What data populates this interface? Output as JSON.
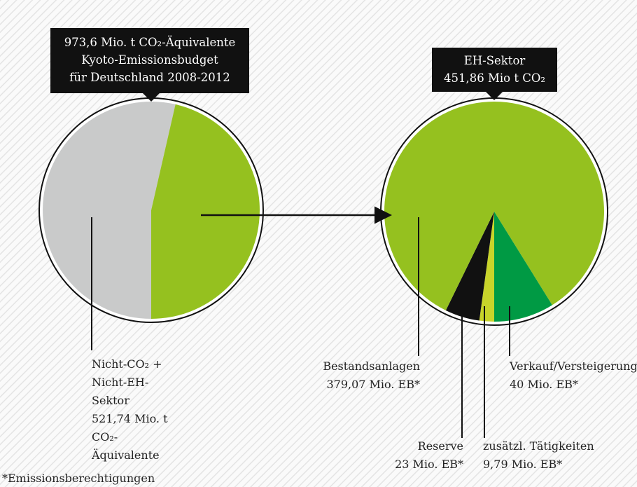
{
  "chart_data": [
    {
      "type": "pie",
      "title": [
        "973,6 Mio. t CO₂-Äquivalente",
        "Kyoto-Emissionsbudget",
        "für Deutschland 2008-2012"
      ],
      "categories": [
        "Nicht-CO₂ + Nicht-EH-Sektor",
        null
      ],
      "values": [
        521.74,
        451.86
      ],
      "value_labels": [
        "521,74 Mio. t CO₂-Äquivalente",
        null
      ],
      "colors": [
        "#c9caca",
        "#95c11f"
      ]
    },
    {
      "type": "pie",
      "title": [
        "EH-Sektor",
        "451,86 Mio t CO₂"
      ],
      "categories": [
        "zusätzl. Tätigkeiten",
        "Reserve",
        "Bestandsanlagen",
        "Verkauf/Versteigerung"
      ],
      "values": [
        9.79,
        23,
        379.07,
        40
      ],
      "value_labels": [
        "9,79 Mio. EB*",
        "23 Mio. EB*",
        "379,07 Mio. EB*",
        "40 Mio. EB*"
      ],
      "colors": [
        "#c8d42a",
        "#111111",
        "#95c11f",
        "#009a44"
      ]
    }
  ],
  "footnote": "*Emissionsberechtigungen"
}
